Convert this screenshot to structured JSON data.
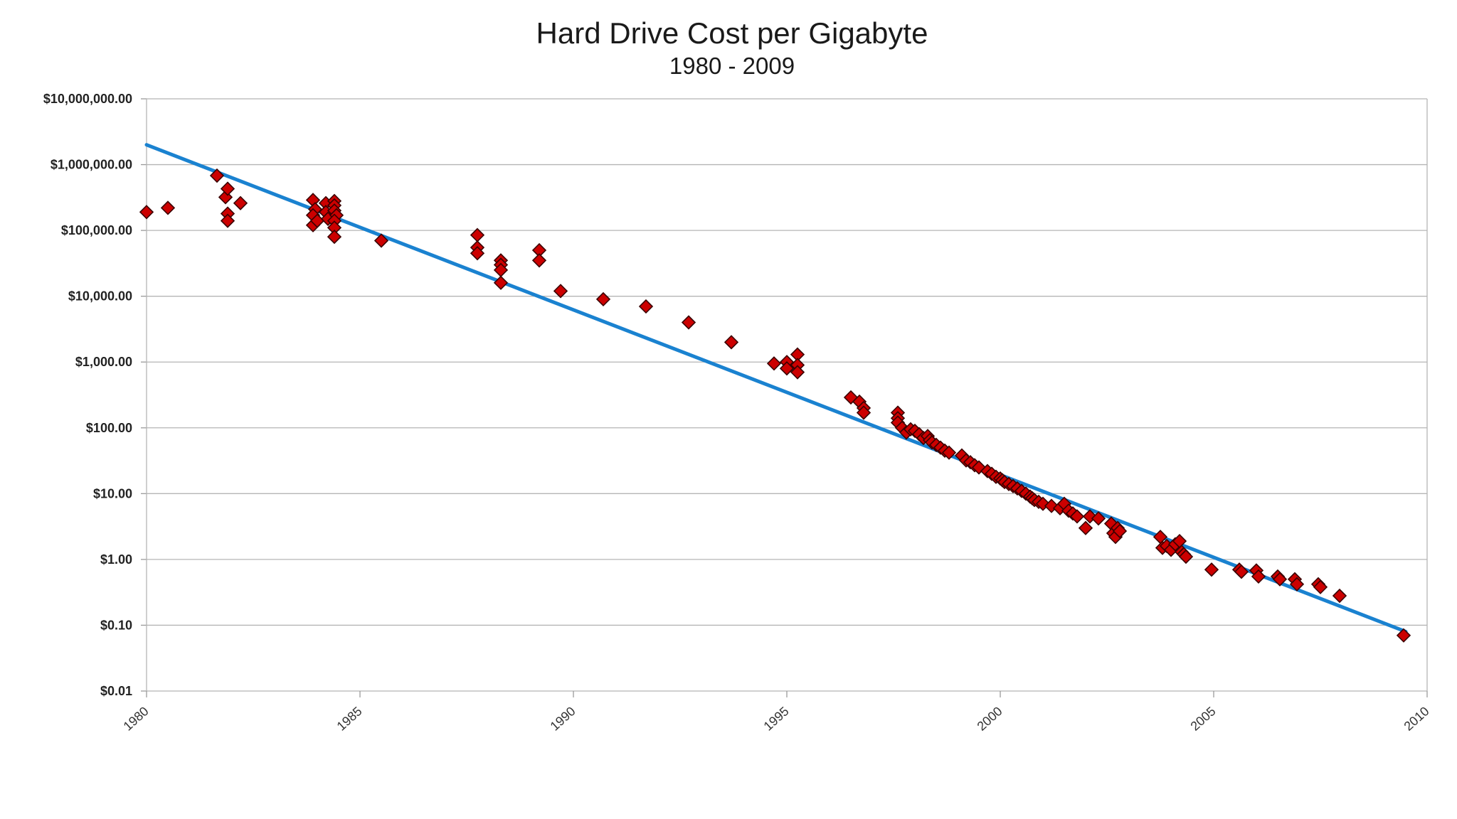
{
  "chart_data": {
    "type": "scatter",
    "title": "Hard Drive Cost per Gigabyte",
    "subtitle": "1980 - 2009",
    "xlabel": "",
    "ylabel": "",
    "xlim": [
      1980,
      2010
    ],
    "ylim": [
      0.01,
      10000000
    ],
    "y_scale": "log",
    "grid": true,
    "legend": "none",
    "x_ticks": [
      "1980",
      "1985",
      "1990",
      "1995",
      "2000",
      "2005",
      "2010"
    ],
    "y_ticks": [
      "$10,000,000.00",
      "$1,000,000.00",
      "$100,000.00",
      "$10,000.00",
      "$1,000.00",
      "$100.00",
      "$10.00",
      "$1.00",
      "$0.10",
      "$0.01"
    ],
    "colors": {
      "marker_fill": "#cc0000",
      "marker_stroke": "#3a0000",
      "trend": "#1a82d0"
    },
    "series": [
      {
        "type": "scatter",
        "marker": "diamond",
        "points": [
          [
            1980.0,
            190000
          ],
          [
            1980.5,
            220000
          ],
          [
            1981.65,
            680000
          ],
          [
            1981.85,
            320000
          ],
          [
            1981.9,
            430000
          ],
          [
            1981.9,
            180000
          ],
          [
            1981.9,
            140000
          ],
          [
            1982.2,
            260000
          ],
          [
            1983.9,
            290000
          ],
          [
            1983.95,
            210000
          ],
          [
            1983.9,
            170000
          ],
          [
            1983.9,
            120000
          ],
          [
            1984.0,
            140000
          ],
          [
            1984.2,
            260000
          ],
          [
            1984.2,
            190000
          ],
          [
            1984.25,
            150000
          ],
          [
            1984.4,
            280000
          ],
          [
            1984.4,
            240000
          ],
          [
            1984.4,
            200000
          ],
          [
            1984.45,
            170000
          ],
          [
            1984.4,
            140000
          ],
          [
            1984.4,
            110000
          ],
          [
            1984.4,
            80000
          ],
          [
            1985.5,
            70000
          ],
          [
            1987.75,
            85000
          ],
          [
            1987.75,
            55000
          ],
          [
            1987.75,
            45000
          ],
          [
            1988.3,
            35000
          ],
          [
            1988.3,
            30000
          ],
          [
            1988.3,
            25000
          ],
          [
            1988.3,
            16000
          ],
          [
            1989.2,
            50000
          ],
          [
            1989.2,
            35000
          ],
          [
            1989.7,
            12000
          ],
          [
            1990.7,
            9000
          ],
          [
            1991.7,
            7000
          ],
          [
            1992.7,
            4000
          ],
          [
            1993.7,
            2000
          ],
          [
            1994.7,
            950
          ],
          [
            1995.0,
            1000
          ],
          [
            1995.0,
            800
          ],
          [
            1995.25,
            1300
          ],
          [
            1995.25,
            900
          ],
          [
            1995.25,
            700
          ],
          [
            1996.5,
            290
          ],
          [
            1996.7,
            250
          ],
          [
            1996.8,
            200
          ],
          [
            1996.8,
            170
          ],
          [
            1997.6,
            170
          ],
          [
            1997.6,
            140
          ],
          [
            1997.6,
            120
          ],
          [
            1997.7,
            100
          ],
          [
            1997.8,
            85
          ],
          [
            1997.9,
            95
          ],
          [
            1998.0,
            90
          ],
          [
            1998.1,
            80
          ],
          [
            1998.2,
            70
          ],
          [
            1998.3,
            75
          ],
          [
            1998.35,
            65
          ],
          [
            1998.4,
            60
          ],
          [
            1998.5,
            55
          ],
          [
            1998.6,
            50
          ],
          [
            1998.7,
            45
          ],
          [
            1998.8,
            42
          ],
          [
            1999.1,
            38
          ],
          [
            1999.2,
            32
          ],
          [
            1999.3,
            30
          ],
          [
            1999.4,
            27
          ],
          [
            1999.5,
            25
          ],
          [
            1999.7,
            22
          ],
          [
            1999.8,
            20
          ],
          [
            1999.9,
            18
          ],
          [
            2000.0,
            17
          ],
          [
            2000.05,
            16
          ],
          [
            2000.1,
            15
          ],
          [
            2000.2,
            14
          ],
          [
            2000.3,
            13
          ],
          [
            2000.4,
            12
          ],
          [
            2000.5,
            11
          ],
          [
            2000.6,
            10
          ],
          [
            2000.7,
            9
          ],
          [
            2000.75,
            8.5
          ],
          [
            2000.8,
            8
          ],
          [
            2000.9,
            7.5
          ],
          [
            2001.0,
            7
          ],
          [
            2001.2,
            6.5
          ],
          [
            2001.4,
            6
          ],
          [
            2001.5,
            7
          ],
          [
            2001.6,
            5.5
          ],
          [
            2001.7,
            5
          ],
          [
            2001.8,
            4.5
          ],
          [
            2002.0,
            3
          ],
          [
            2002.1,
            4.5
          ],
          [
            2002.3,
            4.2
          ],
          [
            2002.6,
            3.5
          ],
          [
            2002.65,
            2.5
          ],
          [
            2002.7,
            2.2
          ],
          [
            2002.75,
            3
          ],
          [
            2002.8,
            2.7
          ],
          [
            2003.75,
            2.2
          ],
          [
            2003.8,
            1.5
          ],
          [
            2003.9,
            1.6
          ],
          [
            2004.0,
            1.4
          ],
          [
            2004.1,
            1.7
          ],
          [
            2004.2,
            1.9
          ],
          [
            2004.25,
            1.3
          ],
          [
            2004.3,
            1.2
          ],
          [
            2004.35,
            1.1
          ],
          [
            2004.95,
            0.7
          ],
          [
            2005.6,
            0.7
          ],
          [
            2005.65,
            0.65
          ],
          [
            2006.0,
            0.68
          ],
          [
            2006.05,
            0.55
          ],
          [
            2006.5,
            0.55
          ],
          [
            2006.55,
            0.5
          ],
          [
            2006.9,
            0.5
          ],
          [
            2006.95,
            0.42
          ],
          [
            2007.45,
            0.42
          ],
          [
            2007.5,
            0.38
          ],
          [
            2007.95,
            0.28
          ],
          [
            2009.45,
            0.07
          ]
        ]
      },
      {
        "type": "line",
        "points": [
          [
            1980.0,
            2000000
          ],
          [
            2009.5,
            0.08
          ]
        ]
      }
    ]
  }
}
